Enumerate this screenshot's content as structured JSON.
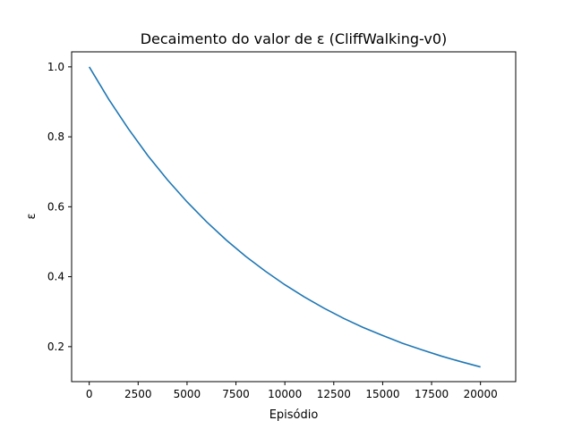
{
  "chart_data": {
    "type": "line",
    "title": "Decaimento do valor de ε (CliffWalking-v0)",
    "xlabel": "Episódio",
    "ylabel": "ε",
    "xlim": [
      -900,
      21800
    ],
    "ylim": [
      0.1,
      1.043
    ],
    "grid": false,
    "xticks": [
      0,
      2500,
      5000,
      7500,
      10000,
      12500,
      15000,
      17500,
      20000
    ],
    "xtick_labels": [
      "0",
      "2500",
      "5000",
      "7500",
      "10000",
      "12500",
      "15000",
      "17500",
      "20000"
    ],
    "yticks": [
      0.2,
      0.4,
      0.6,
      0.8,
      1.0
    ],
    "ytick_labels": [
      "0.2",
      "0.4",
      "0.6",
      "0.8",
      "1.0"
    ],
    "series": [
      {
        "color": "#1f77b4",
        "x": [
          0,
          1000,
          2000,
          3000,
          4000,
          5000,
          6000,
          7000,
          8000,
          9000,
          10000,
          11000,
          12000,
          13000,
          14000,
          15000,
          16000,
          17000,
          18000,
          19000,
          20000
        ],
        "y": [
          1.0,
          0.907,
          0.823,
          0.746,
          0.677,
          0.614,
          0.557,
          0.505,
          0.458,
          0.416,
          0.377,
          0.342,
          0.31,
          0.281,
          0.255,
          0.232,
          0.21,
          0.191,
          0.173,
          0.157,
          0.142
        ]
      }
    ]
  }
}
